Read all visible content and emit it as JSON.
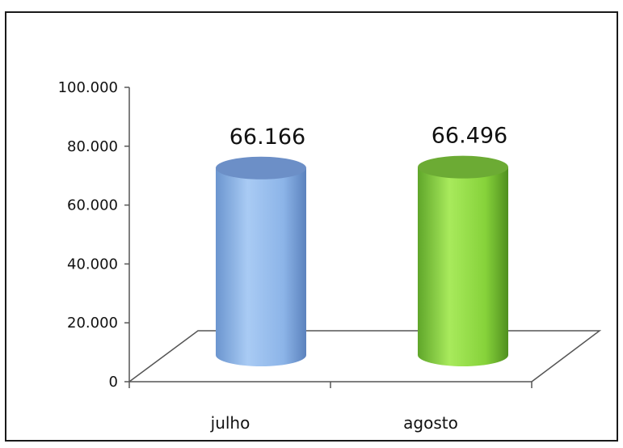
{
  "chart_data": {
    "type": "bar",
    "style": "3d-cylinder",
    "categories": [
      "julho",
      "agosto"
    ],
    "values": [
      66166,
      66496
    ],
    "data_labels": [
      "66.166",
      "66.496"
    ],
    "y_ticks": [
      "0",
      "20.000",
      "40.000",
      "60.000",
      "80.000",
      "100.000"
    ],
    "ylim": [
      0,
      100000
    ],
    "grid": false,
    "legend": "none",
    "colors": {
      "julho": "#8fb6e8",
      "agosto": "#8ed93f",
      "floor_line": "#555555",
      "axis": "#555555"
    }
  }
}
